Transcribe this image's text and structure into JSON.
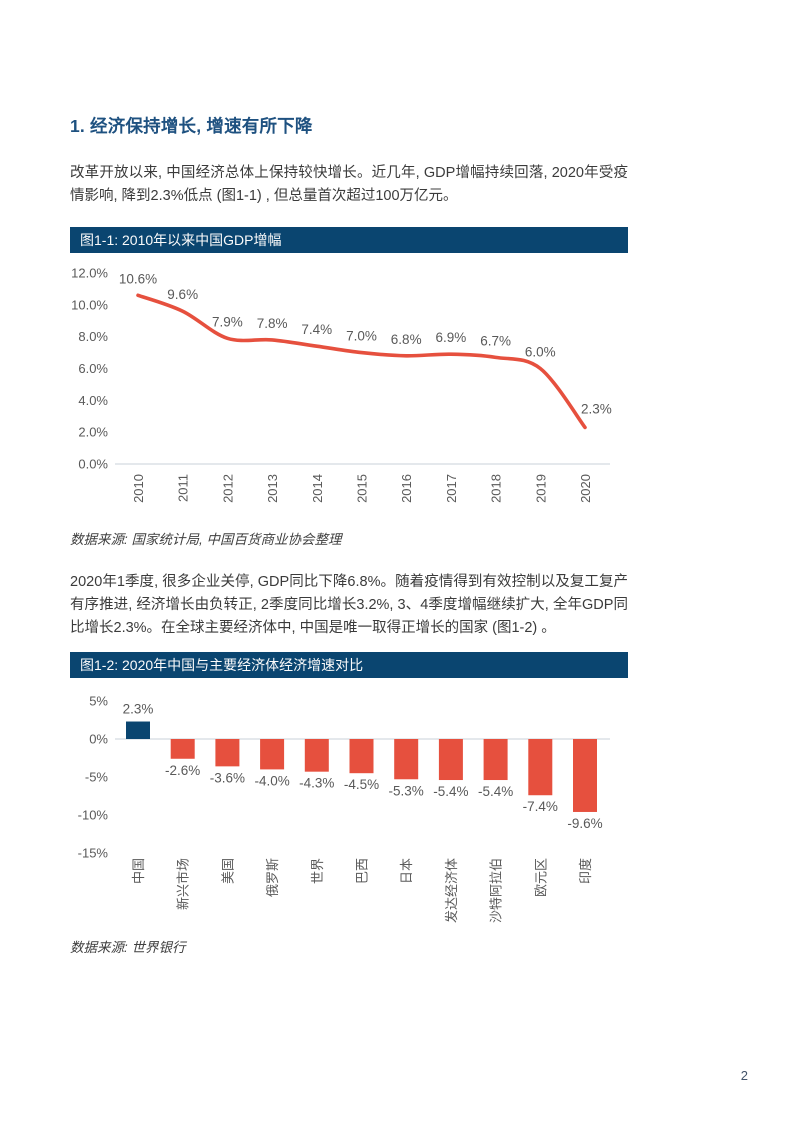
{
  "page": {
    "number": "2"
  },
  "colors": {
    "heading_blue": "#1E5180",
    "figure_header_bg": "#0A4570",
    "line_red": "#E6503E",
    "bar_negative_red": "#E6503E",
    "bar_positive_navy": "#0A4570",
    "axis_gray": "#DCE0E5",
    "label_gray": "#595959"
  },
  "section": {
    "heading": "1. 经济保持增长, 增速有所下降",
    "paragraph1": "改革开放以来, 中国经济总体上保持较快增长。近几年, GDP增幅持续回落, 2020年受疫情影响, 降到2.3%低点 (图1-1) , 但总量首次超过100万亿元。",
    "paragraph2": "2020年1季度, 很多企业关停, GDP同比下降6.8%。随着疫情得到有效控制以及复工复产有序推进, 经济增长由负转正, 2季度同比增长3.2%, 3、4季度增幅继续扩大, 全年GDP同比增长2.3%。在全球主要经济体中, 中国是唯一取得正增长的国家 (图1-2) 。"
  },
  "figure1": {
    "title": "图1-1: 2010年以来中国GDP增幅",
    "source": "数据来源: 国家统计局, 中国百货商业协会整理"
  },
  "figure2": {
    "title": "图1-2: 2020年中国与主要经济体经济增速对比",
    "source": "数据来源: 世界银行"
  },
  "chart_data": [
    {
      "type": "line",
      "title": "图1-1: 2010年以来中国GDP增幅",
      "x": [
        "2010",
        "2011",
        "2012",
        "2013",
        "2014",
        "2015",
        "2016",
        "2017",
        "2018",
        "2019",
        "2020"
      ],
      "values": [
        10.6,
        9.6,
        7.9,
        7.8,
        7.4,
        7.0,
        6.8,
        6.9,
        6.7,
        6.0,
        2.3
      ],
      "point_labels": [
        "10.6%",
        "9.6%",
        "7.9%",
        "7.8%",
        "7.4%",
        "7.0%",
        "6.8%",
        "6.9%",
        "6.7%",
        "6.0%",
        "2.3%"
      ],
      "xlabel": "",
      "ylabel": "",
      "ylim": [
        0,
        12
      ],
      "grid": false,
      "legend": "none",
      "yticks": [
        {
          "value": 0,
          "label": "0.0%"
        },
        {
          "value": 2,
          "label": "2.0%"
        },
        {
          "value": 4,
          "label": "4.0%"
        },
        {
          "value": 6,
          "label": "6.0%"
        },
        {
          "value": 8,
          "label": "8.0%"
        },
        {
          "value": 10,
          "label": "10.0%"
        },
        {
          "value": 12,
          "label": "12.0%"
        }
      ]
    },
    {
      "type": "bar",
      "title": "图1-2: 2020年中国与主要经济体经济增速对比",
      "categories": [
        "中国",
        "新兴市场",
        "美国",
        "俄罗斯",
        "世界",
        "巴西",
        "日本",
        "发达经济体",
        "沙特阿拉伯",
        "欧元区",
        "印度"
      ],
      "values": [
        2.3,
        -2.6,
        -3.6,
        -4.0,
        -4.3,
        -4.5,
        -5.3,
        -5.4,
        -5.4,
        -7.4,
        -9.6
      ],
      "bar_labels": [
        "2.3%",
        "-2.6%",
        "-3.6%",
        "-4.0%",
        "-4.3%",
        "-4.5%",
        "-5.3%",
        "-5.4%",
        "-5.4%",
        "-7.4%",
        "-9.6%"
      ],
      "xlabel": "",
      "ylabel": "",
      "ylim": [
        -15,
        5
      ],
      "grid": false,
      "legend": "none",
      "yticks": [
        {
          "value": 5,
          "label": "5%"
        },
        {
          "value": 0,
          "label": "0%"
        },
        {
          "value": -5,
          "label": "-5%"
        },
        {
          "value": -10,
          "label": "-10%"
        },
        {
          "value": -15,
          "label": "-15%"
        }
      ]
    }
  ]
}
